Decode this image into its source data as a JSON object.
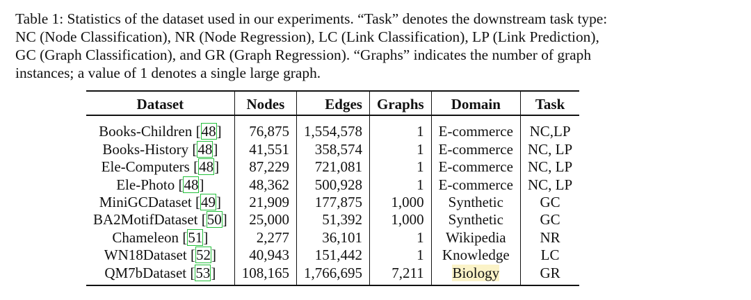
{
  "caption": {
    "lines": [
      "Table 1: Statistics of the dataset used in our experiments. “Task” denotes the downstream task type:",
      "NC (Node Classification), NR (Node Regression), LC (Link Classification), LP (Link Prediction),",
      "GC (Graph Classification), and GR (Graph Regression). “Graphs” indicates the number of graph",
      "instances; a value of 1 denotes a single large graph."
    ]
  },
  "table": {
    "headers": [
      "Dataset",
      "Nodes",
      "Edges",
      "Graphs",
      "Domain",
      "Task"
    ],
    "rows": [
      {
        "name": "Books-Children",
        "ref": "48",
        "nodes": "76,875",
        "edges": "1,554,578",
        "graphs": "1",
        "domain": "E-commerce",
        "task": "NC,LP"
      },
      {
        "name": "Books-History",
        "ref": "48",
        "nodes": "41,551",
        "edges": "358,574",
        "graphs": "1",
        "domain": "E-commerce",
        "task": "NC, LP"
      },
      {
        "name": "Ele-Computers",
        "ref": "48",
        "nodes": "87,229",
        "edges": "721,081",
        "graphs": "1",
        "domain": "E-commerce",
        "task": "NC, LP"
      },
      {
        "name": "Ele-Photo",
        "ref": "48",
        "nodes": "48,362",
        "edges": "500,928",
        "graphs": "1",
        "domain": "E-commerce",
        "task": "NC, LP"
      },
      {
        "name": "MiniGCDataset",
        "ref": "49",
        "nodes": "21,909",
        "edges": "177,875",
        "graphs": "1,000",
        "domain": "Synthetic",
        "task": "GC"
      },
      {
        "name": "BA2MotifDataset",
        "ref": "50",
        "nodes": "25,000",
        "edges": "51,392",
        "graphs": "1,000",
        "domain": "Synthetic",
        "task": "GC"
      },
      {
        "name": "Chameleon",
        "ref": "51",
        "nodes": "2,277",
        "edges": "36,101",
        "graphs": "1",
        "domain": "Wikipedia",
        "task": "NR"
      },
      {
        "name": "WN18Dataset",
        "ref": "52",
        "nodes": "40,943",
        "edges": "151,442",
        "graphs": "1",
        "domain": "Knowledge",
        "task": "LC"
      },
      {
        "name": "QM7bDataset",
        "ref": "53",
        "nodes": "108,165",
        "edges": "1,766,695",
        "graphs": "7,211",
        "domain": "Biology",
        "task": "GR"
      }
    ]
  },
  "colors": {
    "citation_box": "#22c03a",
    "highlight": "#fbf3c8"
  }
}
